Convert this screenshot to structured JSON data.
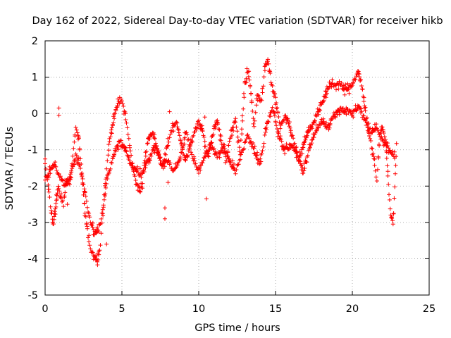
{
  "chart_data": {
    "type": "scatter",
    "title": "Day 162 of 2022, Sidereal Day-to-day VTEC variation (SDTVAR) for receiver hikb",
    "xlabel": "GPS time / hours",
    "ylabel": "SDTVAR / TECUs",
    "xlim": [
      0,
      25
    ],
    "ylim": [
      -5,
      2
    ],
    "xticks": [
      0,
      5,
      10,
      15,
      20,
      25
    ],
    "yticks": [
      -5,
      -4,
      -3,
      -2,
      -1,
      0,
      1,
      2
    ],
    "grid": true,
    "marker": "+",
    "series": [
      {
        "name": "SDTVAR",
        "color": "#ff0000",
        "tracks": [
          [
            [
              0.0,
              -1.4
            ],
            [
              0.2,
              -2.0
            ],
            [
              0.4,
              -2.7
            ],
            [
              0.55,
              -3.1
            ],
            [
              0.7,
              -2.5
            ],
            [
              0.85,
              -2.0
            ],
            [
              1.0,
              -2.3
            ],
            [
              1.2,
              -2.5
            ],
            [
              1.4,
              -1.8
            ],
            [
              1.6,
              -1.9
            ],
            [
              1.8,
              -1.2
            ],
            [
              2.0,
              -0.4
            ],
            [
              2.2,
              -0.7
            ],
            [
              2.4,
              -1.7
            ],
            [
              2.6,
              -2.7
            ],
            [
              2.8,
              -3.4
            ],
            [
              3.0,
              -3.8
            ],
            [
              3.2,
              -3.9
            ],
            [
              3.4,
              -4.1
            ],
            [
              3.6,
              -3.6
            ],
            [
              3.8,
              -2.5
            ],
            [
              4.0,
              -1.5
            ],
            [
              4.2,
              -0.8
            ],
            [
              4.4,
              -0.3
            ],
            [
              4.6,
              0.1
            ],
            [
              4.8,
              0.3
            ],
            [
              5.0,
              0.35
            ],
            [
              5.2,
              0.0
            ],
            [
              5.4,
              -0.6
            ],
            [
              5.6,
              -1.2
            ],
            [
              5.8,
              -1.7
            ],
            [
              6.0,
              -1.95
            ],
            [
              6.2,
              -2.1
            ],
            [
              6.4,
              -1.9
            ]
          ],
          [
            [
              0.0,
              -1.8
            ],
            [
              0.3,
              -1.6
            ],
            [
              0.6,
              -1.4
            ],
            [
              0.9,
              -1.7
            ],
            [
              1.2,
              -1.95
            ],
            [
              1.5,
              -1.9
            ],
            [
              1.8,
              -1.5
            ],
            [
              2.0,
              -1.1
            ],
            [
              2.3,
              -1.5
            ],
            [
              2.6,
              -2.2
            ],
            [
              2.9,
              -2.9
            ],
            [
              3.2,
              -3.3
            ],
            [
              3.5,
              -3.2
            ],
            [
              3.8,
              -2.6
            ],
            [
              4.0,
              -1.9
            ],
            [
              4.3,
              -1.4
            ],
            [
              4.6,
              -1.0
            ],
            [
              4.9,
              -0.75
            ],
            [
              5.2,
              -1.0
            ],
            [
              5.5,
              -1.3
            ],
            [
              5.8,
              -1.5
            ],
            [
              6.1,
              -1.65
            ],
            [
              6.4,
              -1.6
            ],
            [
              6.8,
              -1.2
            ],
            [
              7.2,
              -0.9
            ],
            [
              7.6,
              -1.4
            ],
            [
              8.0,
              -1.3
            ]
          ],
          [
            [
              6.4,
              -1.6
            ],
            [
              6.7,
              -0.7
            ],
            [
              7.0,
              -0.5
            ],
            [
              7.3,
              -1.0
            ],
            [
              7.6,
              -1.5
            ],
            [
              7.9,
              -1.0
            ],
            [
              8.2,
              -0.5
            ],
            [
              8.5,
              -0.2
            ],
            [
              8.8,
              -0.7
            ],
            [
              9.1,
              -1.3
            ],
            [
              9.4,
              -1.0
            ],
            [
              9.7,
              -0.5
            ],
            [
              10.0,
              -0.2
            ],
            [
              10.3,
              -0.6
            ],
            [
              10.6,
              -1.2
            ],
            [
              10.9,
              -0.6
            ],
            [
              11.2,
              -0.2
            ],
            [
              11.5,
              -0.8
            ],
            [
              11.8,
              -1.3
            ],
            [
              12.1,
              -0.5
            ],
            [
              12.4,
              -0.2
            ],
            [
              12.7,
              -1.1
            ],
            [
              13.0,
              0.8
            ],
            [
              13.2,
              1.2
            ],
            [
              13.4,
              0.6
            ],
            [
              13.6,
              -0.4
            ],
            [
              13.8,
              0.5
            ],
            [
              14.1,
              0.3
            ],
            [
              14.3,
              1.3
            ],
            [
              14.5,
              1.5
            ],
            [
              14.7,
              0.9
            ],
            [
              15.0,
              0.4
            ],
            [
              15.3,
              -0.4
            ],
            [
              15.6,
              -0.1
            ],
            [
              15.9,
              -0.3
            ],
            [
              16.2,
              -0.8
            ],
            [
              16.5,
              -1.3
            ],
            [
              16.8,
              -0.9
            ],
            [
              17.1,
              -0.5
            ],
            [
              17.4,
              -0.3
            ],
            [
              17.7,
              0.0
            ],
            [
              18.0,
              0.3
            ],
            [
              18.3,
              0.55
            ],
            [
              18.6,
              0.8
            ],
            [
              18.9,
              0.75
            ],
            [
              19.2,
              0.85
            ],
            [
              19.5,
              0.65
            ],
            [
              19.8,
              0.7
            ],
            [
              20.1,
              0.9
            ],
            [
              20.4,
              1.1
            ],
            [
              20.6,
              0.8
            ],
            [
              20.8,
              0.2
            ],
            [
              21.0,
              -0.4
            ],
            [
              21.2,
              -0.8
            ],
            [
              21.4,
              -1.2
            ],
            [
              21.6,
              -1.9
            ],
            [
              21.8,
              -0.5
            ],
            [
              22.0,
              -0.4
            ],
            [
              22.2,
              -0.9
            ],
            [
              22.35,
              -2.0
            ],
            [
              22.5,
              -2.8
            ],
            [
              22.65,
              -3.05
            ],
            [
              22.8,
              -1.7
            ],
            [
              22.9,
              -0.6
            ]
          ],
          [
            [
              8.0,
              -1.3
            ],
            [
              8.4,
              -1.6
            ],
            [
              8.8,
              -1.2
            ],
            [
              9.2,
              -0.5
            ],
            [
              9.6,
              -1.2
            ],
            [
              10.0,
              -1.6
            ],
            [
              10.4,
              -1.2
            ],
            [
              10.8,
              -0.8
            ],
            [
              11.2,
              -1.2
            ],
            [
              11.6,
              -0.9
            ],
            [
              12.0,
              -1.3
            ],
            [
              12.4,
              -1.6
            ],
            [
              12.8,
              -1.1
            ],
            [
              13.2,
              -0.6
            ],
            [
              13.6,
              -1.0
            ],
            [
              14.0,
              -1.4
            ],
            [
              14.4,
              -0.4
            ],
            [
              14.8,
              0.2
            ],
            [
              15.2,
              -0.6
            ],
            [
              15.6,
              -1.0
            ],
            [
              16.0,
              -0.9
            ],
            [
              16.4,
              -1.1
            ],
            [
              16.8,
              -1.6
            ],
            [
              17.2,
              -1.0
            ],
            [
              17.6,
              -0.5
            ],
            [
              18.0,
              -0.2
            ],
            [
              18.4,
              -0.4
            ],
            [
              18.8,
              -0.1
            ],
            [
              19.2,
              0.1
            ],
            [
              19.6,
              0.1
            ],
            [
              20.0,
              0.0
            ],
            [
              20.4,
              0.2
            ],
            [
              20.8,
              -0.2
            ],
            [
              21.2,
              -0.5
            ],
            [
              21.6,
              -0.4
            ],
            [
              22.0,
              -0.8
            ],
            [
              22.4,
              -1.0
            ],
            [
              22.8,
              -1.2
            ]
          ]
        ],
        "outliers": [
          [
            0.9,
            0.15
          ],
          [
            0.9,
            -0.05
          ],
          [
            1.45,
            -2.5
          ],
          [
            4.0,
            -3.6
          ],
          [
            7.8,
            -2.9
          ],
          [
            7.8,
            -2.6
          ],
          [
            8.0,
            -1.9
          ],
          [
            10.5,
            -2.35
          ],
          [
            8.1,
            0.05
          ],
          [
            10.4,
            -0.1
          ]
        ]
      }
    ]
  }
}
